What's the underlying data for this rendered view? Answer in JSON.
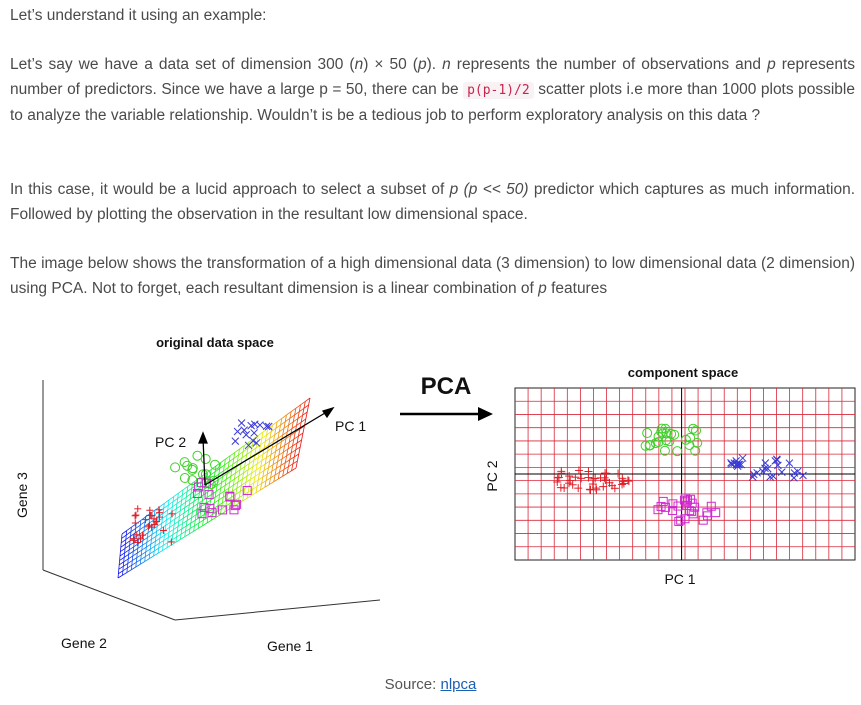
{
  "intro": "Let’s understand it using an example:",
  "p1": {
    "a": "Let’s say we have a data set of dimension 300 (",
    "n": "n",
    "b": ") × 50 (",
    "p": "p",
    "c": "). ",
    "n2": "n",
    "d": " represents the number of observations and ",
    "p2": "p",
    "e": " represents number of predictors. Since we have a large p = 50, there can be ",
    "code": "p(p-1)/2",
    "f": " scatter plots i.e more than 1000 plots possible to analyze the variable relationship. Wouldn’t is be a tedious job to perform exploratory analysis on this data ?"
  },
  "p2": {
    "a": "In this case, it would be a lucid approach to select a subset of ",
    "em": "p (p << 50)",
    "b": " predictor which captures as much information. Followed by plotting the observation in the resultant low dimensional space."
  },
  "p3": {
    "a": "The image below shows the transformation of a high dimensional data (3 dimension) to low dimensional data (2 dimension) using PCA. Not to forget, each resultant dimension is a linear combination of ",
    "em": "p",
    "b": " features"
  },
  "figure": {
    "left_title": "original data space",
    "right_title": "component space",
    "arrow_label": "PCA",
    "gene3": "Gene 3",
    "gene2": "Gene 2",
    "gene1": "Gene 1",
    "pc1_left": "PC 1",
    "pc2_left": "PC 2",
    "pc1_right": "PC 1",
    "pc2_right": "PC 2"
  },
  "caption": {
    "prefix": "Source: ",
    "link": "nlpca"
  },
  "colors": {
    "red": "#e0202a",
    "green": "#3fcf2a",
    "magenta": "#d02ad0",
    "blue": "#3a3ad8",
    "grid": "#d8283a"
  }
}
